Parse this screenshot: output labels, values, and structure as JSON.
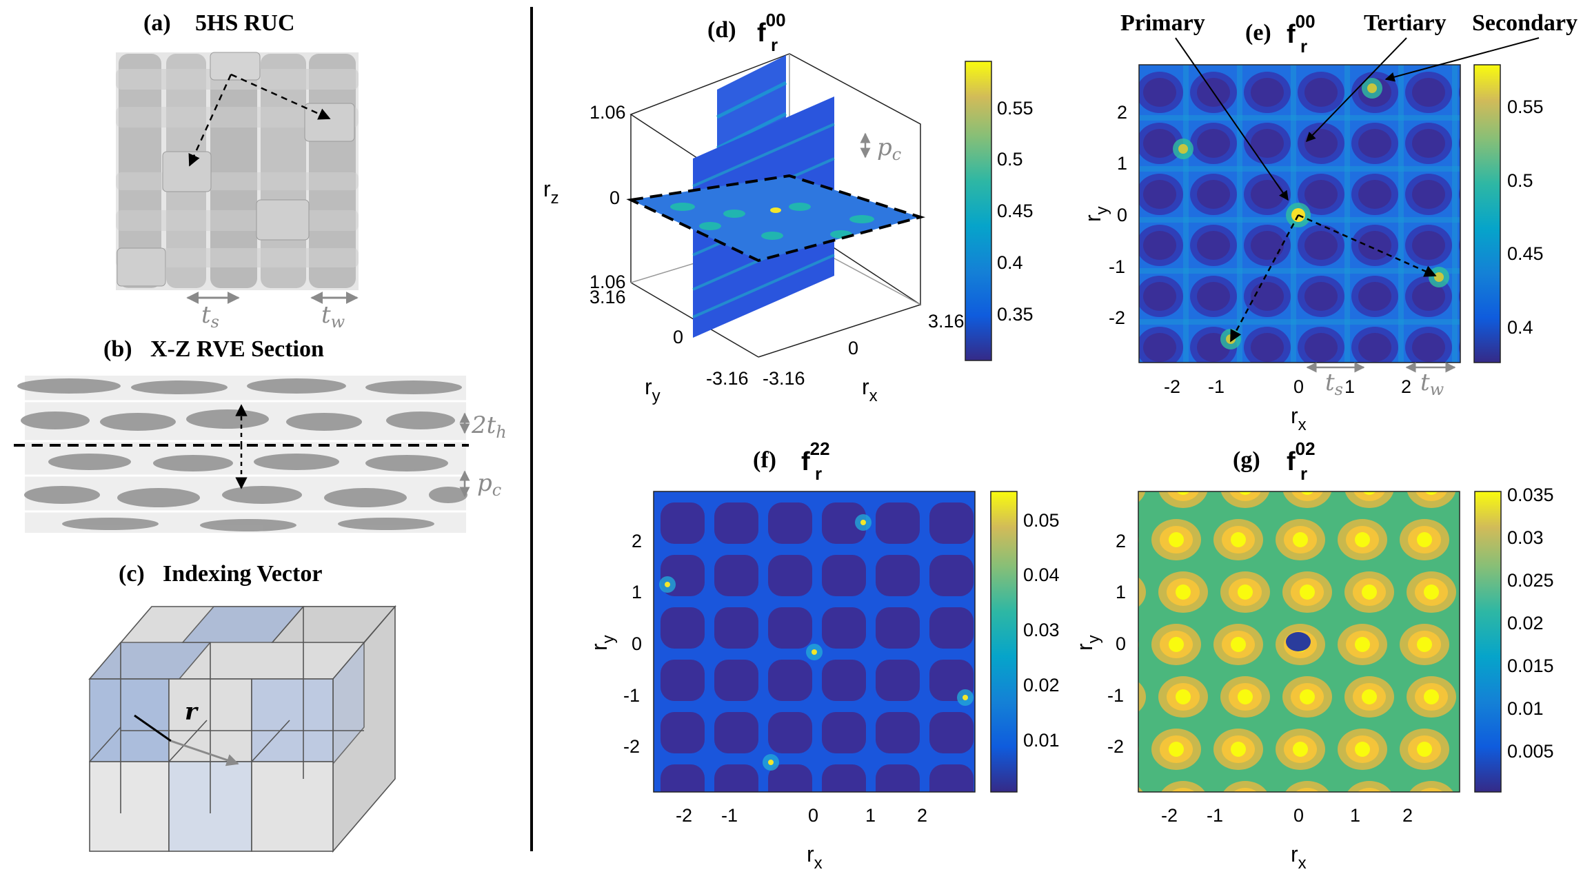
{
  "panels": {
    "a": {
      "label": "(a)",
      "title": "5HS RUC",
      "ts": "t",
      "ts_sub": "s",
      "tw": "t",
      "tw_sub": "w"
    },
    "b": {
      "label": "(b)",
      "title": "X-Z RVE Section",
      "th": "2t",
      "th_sub": "h",
      "pc": "p",
      "pc_sub": "c"
    },
    "c": {
      "label": "(c)",
      "title": "Indexing Vector",
      "r": "r"
    },
    "d": {
      "label": "(d)",
      "fn": "f",
      "fn_sub": "r",
      "fn_sup": "00",
      "z_ticks": [
        "1.06",
        "0",
        "1.06"
      ],
      "y_ticks": [
        "3.16",
        "0",
        "-3.16"
      ],
      "x_ticks": [
        "-3.16",
        "0",
        "3.16"
      ],
      "zlabel": "r",
      "zlabel_sub": "z",
      "ylabel": "r",
      "ylabel_sub": "y",
      "xlabel": "r",
      "xlabel_sub": "x",
      "pc": "p",
      "pc_sub": "c",
      "cbar_ticks": [
        "0.55",
        "0.5",
        "0.45",
        "0.4",
        "0.35"
      ]
    },
    "e": {
      "label": "(e)",
      "fn": "f",
      "fn_sub": "r",
      "fn_sup": "00",
      "primary": "Primary",
      "secondary": "Secondary",
      "tertiary": "Tertiary",
      "x_ticks": [
        "-2",
        "-1",
        "0",
        "1",
        "2"
      ],
      "y_ticks": [
        "2",
        "1",
        "0",
        "-1",
        "-2"
      ],
      "xlabel": "r",
      "xlabel_sub": "x",
      "ylabel": "r",
      "ylabel_sub": "y",
      "ts": "t",
      "ts_sub": "s",
      "tw": "t",
      "tw_sub": "w",
      "cbar_ticks": [
        "0.55",
        "0.5",
        "0.45",
        "0.4"
      ]
    },
    "f": {
      "label": "(f)",
      "fn": "f",
      "fn_sub": "r",
      "fn_sup": "22",
      "x_ticks": [
        "-2",
        "-1",
        "0",
        "1",
        "2"
      ],
      "y_ticks": [
        "2",
        "1",
        "0",
        "-1",
        "-2"
      ],
      "xlabel": "r",
      "xlabel_sub": "x",
      "ylabel": "r",
      "ylabel_sub": "y",
      "cbar_ticks": [
        "0.05",
        "0.04",
        "0.03",
        "0.02",
        "0.01"
      ]
    },
    "g": {
      "label": "(g)",
      "fn": "f",
      "fn_sub": "r",
      "fn_sup": "02",
      "x_ticks": [
        "-2",
        "-1",
        "0",
        "1",
        "2"
      ],
      "y_ticks": [
        "2",
        "1",
        "0",
        "-1",
        "-2"
      ],
      "xlabel": "r",
      "xlabel_sub": "x",
      "ylabel": "r",
      "ylabel_sub": "y",
      "cbar_ticks": [
        "0.035",
        "0.03",
        "0.025",
        "0.02",
        "0.015",
        "0.01",
        "0.005"
      ]
    }
  },
  "colors": {
    "parula_dark": "#352a87",
    "parula_blue": "#1f6fd9",
    "parula_teal": "#20b3a4",
    "parula_yellow": "#f9fb0e"
  }
}
